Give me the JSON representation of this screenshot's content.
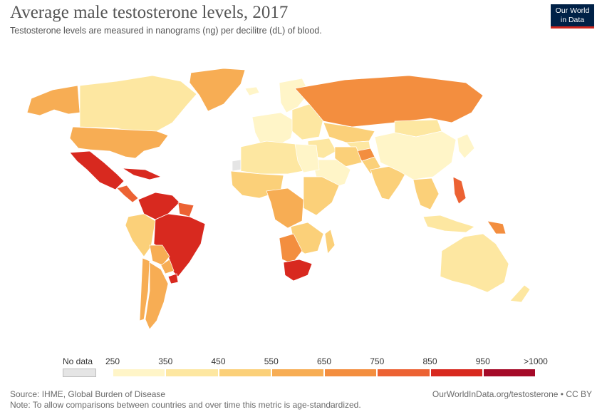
{
  "header": {
    "title": "Average male testosterone levels, 2017",
    "subtitle": "Testosterone levels are measured in nanograms (ng) per decilitre (dL) of blood."
  },
  "logo": {
    "line1": "Our World",
    "line2": "in Data"
  },
  "legend": {
    "no_data_label": "No data",
    "no_data_color": "#e5e5e5",
    "ticks": [
      "250",
      "350",
      "450",
      "550",
      "650",
      "750",
      "850",
      "950",
      ">1000"
    ],
    "colors": [
      "#fff5c8",
      "#fde7a1",
      "#fbd079",
      "#f7ad54",
      "#f38e3f",
      "#ec6233",
      "#d8291f",
      "#a50a28"
    ]
  },
  "footer": {
    "source": "Source: IHME, Global Burden of Disease",
    "note": "Note: To allow comparisons between countries and over time this metric is age-standardized.",
    "url": "OurWorldInData.org/testosterone • CC BY"
  },
  "regions": [
    {
      "name": "canada",
      "color": "#fde7a1"
    },
    {
      "name": "alaska",
      "color": "#f7ad54"
    },
    {
      "name": "greenland",
      "color": "#f7ad54"
    },
    {
      "name": "usa",
      "color": "#f7ad54"
    },
    {
      "name": "mexico",
      "color": "#d8291f"
    },
    {
      "name": "central-america",
      "color": "#ec6233"
    },
    {
      "name": "caribbean",
      "color": "#d8291f"
    },
    {
      "name": "venezuela-colombia",
      "color": "#d8291f"
    },
    {
      "name": "guianas",
      "color": "#ec6233"
    },
    {
      "name": "brazil",
      "color": "#d8291f"
    },
    {
      "name": "peru-ecuador",
      "color": "#fbd079"
    },
    {
      "name": "bolivia",
      "color": "#f7ad54"
    },
    {
      "name": "paraguay",
      "color": "#f7ad54"
    },
    {
      "name": "uruguay",
      "color": "#d8291f"
    },
    {
      "name": "chile",
      "color": "#f7ad54"
    },
    {
      "name": "argentina",
      "color": "#f7ad54"
    },
    {
      "name": "iceland",
      "color": "#fff5c8"
    },
    {
      "name": "scandinavia",
      "color": "#fff5c8"
    },
    {
      "name": "western-europe",
      "color": "#fff5c8"
    },
    {
      "name": "eastern-europe",
      "color": "#fde7a1"
    },
    {
      "name": "russia",
      "color": "#f38e3f"
    },
    {
      "name": "kazakhstan",
      "color": "#fbd079"
    },
    {
      "name": "central-asia",
      "color": "#fde7a1"
    },
    {
      "name": "afghanistan",
      "color": "#f38e3f"
    },
    {
      "name": "middle-east",
      "color": "#fde7a1"
    },
    {
      "name": "arabia",
      "color": "#fff5c8"
    },
    {
      "name": "iran",
      "color": "#fbd079"
    },
    {
      "name": "pakistan",
      "color": "#fbd079"
    },
    {
      "name": "india",
      "color": "#fbd079"
    },
    {
      "name": "mongolia",
      "color": "#fde7a1"
    },
    {
      "name": "china",
      "color": "#fff5c8"
    },
    {
      "name": "korea-japan",
      "color": "#fff5c8"
    },
    {
      "name": "southeast-asia",
      "color": "#fbd079"
    },
    {
      "name": "philippines",
      "color": "#ec6233"
    },
    {
      "name": "indonesia",
      "color": "#fde7a1"
    },
    {
      "name": "papua-new-guinea",
      "color": "#f38e3f"
    },
    {
      "name": "australia",
      "color": "#fde7a1"
    },
    {
      "name": "new-zealand",
      "color": "#fde7a1"
    },
    {
      "name": "north-africa",
      "color": "#fde7a1"
    },
    {
      "name": "egypt",
      "color": "#fff5c8"
    },
    {
      "name": "west-africa",
      "color": "#fbd079"
    },
    {
      "name": "central-africa",
      "color": "#f7ad54"
    },
    {
      "name": "east-africa",
      "color": "#fbd079"
    },
    {
      "name": "southern-africa",
      "color": "#fbd079"
    },
    {
      "name": "namibia-botswana",
      "color": "#f38e3f"
    },
    {
      "name": "south-africa",
      "color": "#d8291f"
    },
    {
      "name": "madagascar",
      "color": "#fbd079"
    },
    {
      "name": "western-sahara",
      "color": "#e5e5e5"
    }
  ]
}
